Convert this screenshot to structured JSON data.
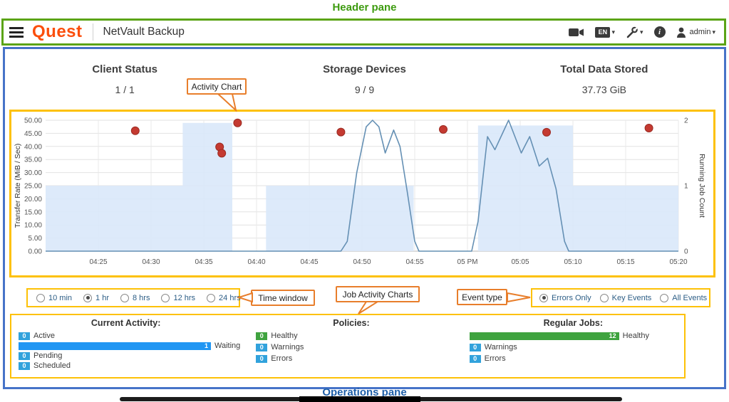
{
  "annotations": {
    "header_pane": "Header pane",
    "operations_pane": "Operations pane",
    "callouts": {
      "activity_chart": "Activity Chart",
      "time_window": "Time window",
      "job_activity_charts": "Job Activity Charts",
      "event_type": "Event type"
    }
  },
  "colors": {
    "annotation_green": "#3d9b0f",
    "header_border_green": "#5ba417",
    "main_border_blue": "#4673c8",
    "highlight_yellow": "#fdc106",
    "callout_orange": "#e87e2b",
    "quest_orange": "#fb4e0c",
    "operations_label_blue": "#1e5fa9"
  },
  "header": {
    "logo": "Quest",
    "app_title": "NetVault Backup",
    "language_label": "EN",
    "info_glyph": "i",
    "user_label": "admin",
    "icons": [
      "menu-icon",
      "video-icon",
      "language-icon",
      "tools-icon",
      "info-icon",
      "user-icon"
    ]
  },
  "summary": [
    {
      "label": "Client Status",
      "value": "1 / 1"
    },
    {
      "label": "Storage Devices",
      "value": "9 / 9"
    },
    {
      "label": "Total Data Stored",
      "value": "37.73 GiB"
    }
  ],
  "time_window": {
    "options": [
      "10 min",
      "1 hr",
      "8 hrs",
      "12 hrs",
      "24 hrs"
    ],
    "selected": "1 hr"
  },
  "event_type": {
    "options": [
      "Errors Only",
      "Key Events",
      "All Events"
    ],
    "selected": "Errors Only"
  },
  "chart_data": {
    "type": "area",
    "title": "Activity Chart",
    "x": {
      "range_minutes": [
        0,
        60
      ],
      "tick_minutes": [
        5,
        10,
        15,
        20,
        25,
        30,
        35,
        40,
        45,
        50,
        55,
        60
      ],
      "tick_labels": [
        "04:25",
        "04:30",
        "04:35",
        "04:40",
        "04:45",
        "04:50",
        "04:55",
        "05 PM",
        "05:05",
        "05:10",
        "05:15",
        "05:20"
      ]
    },
    "y_left": {
      "label": "Transfer Rate (MiB / Sec)",
      "range": [
        0,
        50
      ],
      "tick_step": 5,
      "tick_labels": [
        "0.00",
        "5.00",
        "10.00",
        "15.00",
        "20.00",
        "25.00",
        "30.00",
        "35.00",
        "40.00",
        "45.00",
        "50.00"
      ]
    },
    "y_right": {
      "label": "Running Job Count",
      "range": [
        0,
        2
      ],
      "tick_labels": [
        "0",
        "1",
        "2"
      ]
    },
    "grid": true,
    "legend": "none",
    "series": [
      {
        "name": "transfer-rate-area",
        "type": "step_area",
        "axis": "left",
        "color": "#d9e8fa",
        "points": [
          [
            0,
            25
          ],
          [
            13,
            25
          ],
          [
            13,
            49
          ],
          [
            17.7,
            49
          ],
          [
            17.7,
            0
          ],
          [
            20.9,
            0
          ],
          [
            20.9,
            25
          ],
          [
            34.9,
            25
          ],
          [
            34.9,
            0
          ],
          [
            41,
            0
          ],
          [
            41,
            48
          ],
          [
            50,
            48
          ],
          [
            50,
            25
          ],
          [
            60,
            25
          ]
        ]
      },
      {
        "name": "running-job-count-line",
        "type": "line",
        "axis": "right",
        "color": "#6590b4",
        "points": [
          [
            0,
            0
          ],
          [
            28,
            0
          ],
          [
            28.6,
            0.15
          ],
          [
            29.5,
            1.2
          ],
          [
            30.4,
            1.9
          ],
          [
            31,
            2
          ],
          [
            31.6,
            1.9
          ],
          [
            32.2,
            1.5
          ],
          [
            33,
            1.85
          ],
          [
            33.6,
            1.6
          ],
          [
            34.3,
            0.9
          ],
          [
            35,
            0.15
          ],
          [
            35.4,
            0
          ],
          [
            40.4,
            0
          ],
          [
            41,
            0.45
          ],
          [
            41.9,
            1.75
          ],
          [
            42.6,
            1.55
          ],
          [
            43.9,
            2
          ],
          [
            45.1,
            1.5
          ],
          [
            45.9,
            1.75
          ],
          [
            46.8,
            1.3
          ],
          [
            47.6,
            1.42
          ],
          [
            48.4,
            0.95
          ],
          [
            49.2,
            0.15
          ],
          [
            49.6,
            0
          ],
          [
            60,
            0
          ]
        ]
      },
      {
        "name": "error-events",
        "type": "scatter",
        "axis": "left",
        "color": "#c43a31",
        "points": [
          [
            8.5,
            46
          ],
          [
            16.5,
            39.8
          ],
          [
            16.7,
            37.4
          ],
          [
            18.2,
            49
          ],
          [
            28,
            45.5
          ],
          [
            37.7,
            46.5
          ],
          [
            47.5,
            45.4
          ],
          [
            57.2,
            47
          ]
        ]
      }
    ]
  },
  "job_activity": {
    "sections": [
      {
        "title": "Current Activity:",
        "rows": [
          {
            "value": "0",
            "label": "Active",
            "color": "#31a2dc"
          },
          {
            "value": "1",
            "label": "Waiting",
            "color": "#2196f3"
          },
          {
            "value": "0",
            "label": "Pending",
            "color": "#31a2dc"
          },
          {
            "value": "0",
            "label": "Scheduled",
            "color": "#31a2dc"
          }
        ]
      },
      {
        "title": "Policies:",
        "rows": [
          {
            "value": "0",
            "label": "Healthy",
            "color": "#3fa33f"
          },
          {
            "value": "0",
            "label": "Warnings",
            "color": "#31a2dc"
          },
          {
            "value": "0",
            "label": "Errors",
            "color": "#31a2dc"
          }
        ]
      },
      {
        "title": "Regular Jobs:",
        "rows": [
          {
            "value": "12",
            "label": "Healthy",
            "color": "#3fa33f"
          },
          {
            "value": "0",
            "label": "Warnings",
            "color": "#31a2dc"
          },
          {
            "value": "0",
            "label": "Errors",
            "color": "#31a2dc"
          }
        ]
      }
    ]
  }
}
